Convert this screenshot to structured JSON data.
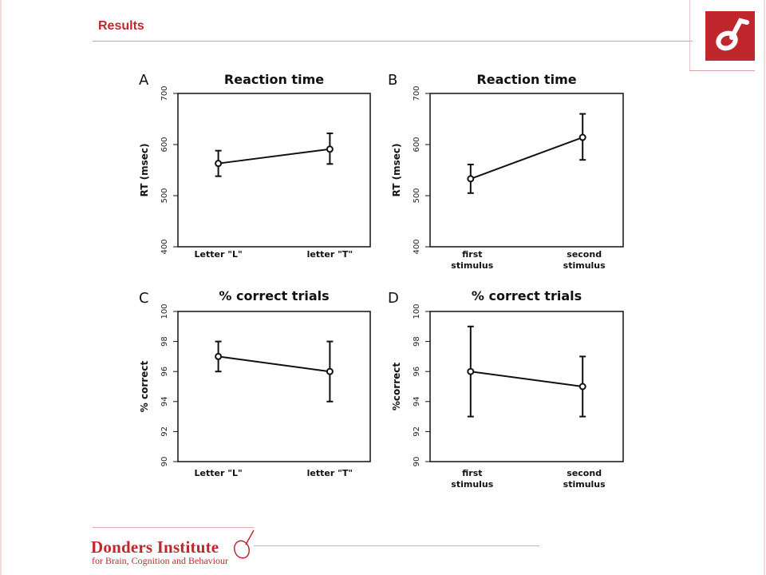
{
  "slide": {
    "title": "Results",
    "footer_name": "Donders Institute",
    "footer_sub": "for Brain, Cognition and Behaviour"
  },
  "colors": {
    "accent": "#c0272d",
    "plot": "#111111"
  },
  "chart_data": [
    {
      "type": "line",
      "panel": "A",
      "title": "Reaction time",
      "ylabel": "RT (msec)",
      "categories": [
        "Letter \"L\"",
        "letter \"T\""
      ],
      "values": [
        563,
        591
      ],
      "error_low": [
        538,
        562
      ],
      "error_high": [
        588,
        622
      ],
      "ylim": [
        400,
        700
      ],
      "yticks": [
        "400",
        "500",
        "600",
        "700"
      ]
    },
    {
      "type": "line",
      "panel": "B",
      "title": "Reaction time",
      "ylabel": "RT (msec)",
      "categories": [
        "first stimulus",
        "second stimulus"
      ],
      "values": [
        533,
        614
      ],
      "error_low": [
        505,
        570
      ],
      "error_high": [
        561,
        660
      ],
      "ylim": [
        400,
        700
      ],
      "yticks": [
        "400",
        "500",
        "600",
        "700"
      ]
    },
    {
      "type": "line",
      "panel": "C",
      "title": "% correct trials",
      "ylabel": "% correct",
      "categories": [
        "Letter \"L\"",
        "letter \"T\""
      ],
      "values": [
        97,
        96
      ],
      "error_low": [
        96,
        94
      ],
      "error_high": [
        98,
        98
      ],
      "ylim": [
        90,
        100
      ],
      "yticks": [
        "90",
        "92",
        "94",
        "96",
        "98",
        "100"
      ]
    },
    {
      "type": "line",
      "panel": "D",
      "title": "% correct trials",
      "ylabel": "%correct",
      "categories": [
        "first stimulus",
        "second stimulus"
      ],
      "values": [
        96,
        95
      ],
      "error_low": [
        93,
        93
      ],
      "error_high": [
        99,
        97
      ],
      "ylim": [
        90,
        100
      ],
      "yticks": [
        "90",
        "92",
        "94",
        "96",
        "98",
        "100"
      ]
    }
  ]
}
